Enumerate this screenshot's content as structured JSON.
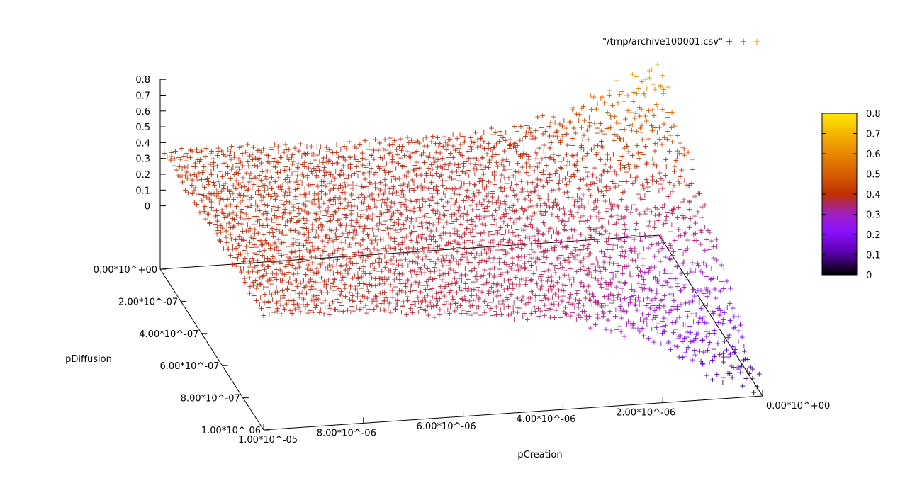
{
  "chart_data": {
    "type": "scatter",
    "title": "",
    "legend": {
      "label": "\"/tmp/archive100001.csv\"",
      "placement": "top-right",
      "marker": "+"
    },
    "xlabel": "pCreation",
    "ylabel": "pDiffusion",
    "zlabel": "",
    "x_ticks": [
      "1.00*10^-05",
      "8.00*10^-06",
      "6.00*10^-06",
      "4.00*10^-06",
      "2.00*10^-06",
      "0.00*10^+00"
    ],
    "y_ticks": [
      "0.00*10^+00",
      "2.00*10^-07",
      "4.00*10^-07",
      "6.00*10^-07",
      "8.00*10^-07",
      "1.00*10^-06"
    ],
    "z_ticks": [
      "0",
      "0.1",
      "0.2",
      "0.3",
      "0.4",
      "0.5",
      "0.6",
      "0.7",
      "0.8"
    ],
    "xlim": [
      0,
      1e-05
    ],
    "ylim": [
      0,
      1e-06
    ],
    "zlim": [
      0,
      0.8
    ],
    "colorbar": {
      "range": [
        0,
        0.8
      ],
      "ticks": [
        "0",
        "0.1",
        "0.2",
        "0.3",
        "0.4",
        "0.5",
        "0.6",
        "0.7",
        "0.8"
      ],
      "palette": [
        "#000000",
        "#5a00b0",
        "#8a10ff",
        "#a020c0",
        "#b82a60",
        "#c03000",
        "#d86000",
        "#f0a000",
        "#ffe800"
      ]
    },
    "surface_profile": {
      "x_samples": [
        0,
        1e-06,
        2e-06,
        3e-06,
        4e-06,
        5e-06,
        6e-06,
        7e-06,
        8e-06,
        9e-06,
        1e-05
      ],
      "z_at_y_min": [
        0.72,
        0.62,
        0.52,
        0.5,
        0.48,
        0.48,
        0.48,
        0.48,
        0.49,
        0.5,
        0.5
      ],
      "z_at_y_max": [
        0.02,
        0.1,
        0.26,
        0.34,
        0.38,
        0.4,
        0.42,
        0.44,
        0.46,
        0.47,
        0.48
      ]
    }
  }
}
